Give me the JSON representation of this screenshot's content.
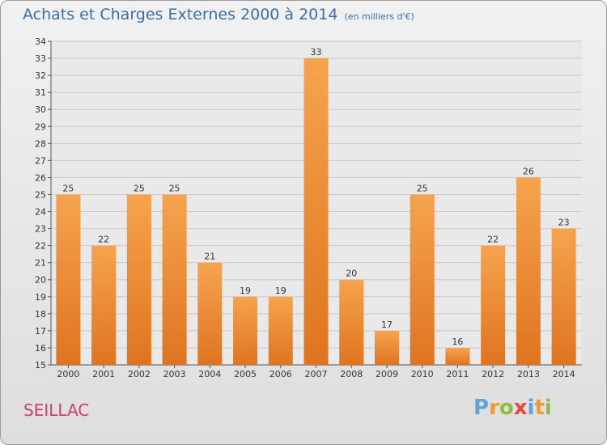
{
  "header": {
    "title": "Achats et Charges Externes 2000 à 2014",
    "subtitle": "(en milliers d'€)"
  },
  "commune": "SEILLAC",
  "logo": {
    "text": "Proxiti",
    "letters": [
      {
        "char": "P",
        "color": "#5aa6dc"
      },
      {
        "char": "r",
        "color": "#f29a2b"
      },
      {
        "char": "o",
        "color": "#8cbf3f"
      },
      {
        "char": "x",
        "color": "#e8463b"
      },
      {
        "char": "i",
        "color": "#5aa6dc"
      },
      {
        "char": "t",
        "color": "#f29a2b"
      },
      {
        "char": "i",
        "color": "#8cbf3f"
      }
    ]
  },
  "colors": {
    "bar_top": "#f6a34d",
    "bar_bottom": "#df7420",
    "grid": "#c9c9c9",
    "title": "#3f6ea0",
    "commune": "#c8426c"
  },
  "chart_data": {
    "type": "bar",
    "title": "Achats et Charges Externes 2000 à 2014",
    "subtitle": "(en milliers d'€)",
    "categories": [
      "2000",
      "2001",
      "2002",
      "2003",
      "2004",
      "2005",
      "2006",
      "2007",
      "2008",
      "2009",
      "2010",
      "2011",
      "2012",
      "2013",
      "2014"
    ],
    "values": [
      25,
      22,
      25,
      25,
      21,
      19,
      19,
      33,
      20,
      17,
      25,
      16,
      22,
      26,
      23
    ],
    "ylim": [
      15,
      34
    ],
    "yticks": [
      15,
      16,
      17,
      18,
      19,
      20,
      21,
      22,
      23,
      24,
      25,
      26,
      27,
      28,
      29,
      30,
      31,
      32,
      33,
      34
    ],
    "grid": true,
    "data_labels": true
  }
}
